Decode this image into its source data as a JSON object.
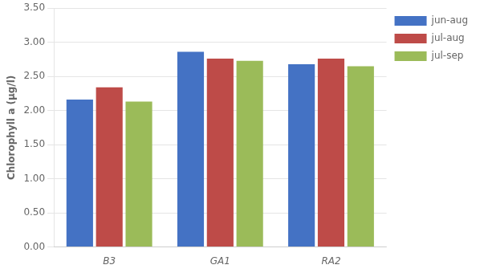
{
  "chart_data": {
    "type": "bar",
    "categories": [
      "B3",
      "GA1",
      "RA2"
    ],
    "series": [
      {
        "name": "jun-aug",
        "color": "#4472C4",
        "values": [
          2.16,
          2.86,
          2.68
        ]
      },
      {
        "name": "jul-aug",
        "color": "#BE4B48",
        "values": [
          2.34,
          2.76,
          2.76
        ]
      },
      {
        "name": "jul-sep",
        "color": "#9BBB59",
        "values": [
          2.13,
          2.73,
          2.65
        ]
      }
    ],
    "ylabel": "Chlorophyll a (µg/l)",
    "ylim": [
      0,
      3.5
    ],
    "yticks": [
      {
        "value": 0,
        "label": "0.00"
      },
      {
        "value": 0.5,
        "label": "0.50"
      },
      {
        "value": 1,
        "label": "1.00"
      },
      {
        "value": 1.5,
        "label": "1.50"
      },
      {
        "value": 2,
        "label": "2.00"
      },
      {
        "value": 2.5,
        "label": "2.50"
      },
      {
        "value": 3,
        "label": "3.00"
      },
      {
        "value": 3.5,
        "label": "3.50"
      }
    ],
    "grid": true,
    "legend": "right"
  }
}
